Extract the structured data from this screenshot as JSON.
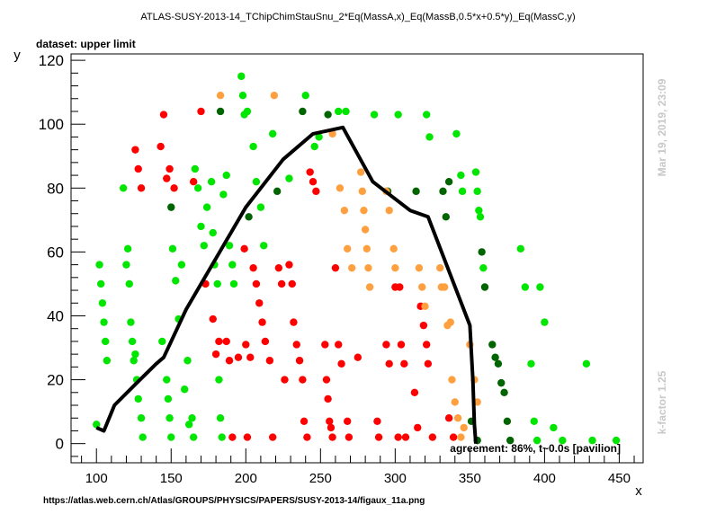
{
  "chart_data": {
    "type": "scatter",
    "title": "ATLAS-SUSY-2013-14_TChipChimStauSnu_2*Eq(MassA,x)_Eq(MassB,0.5*x+0.5*y)_Eq(MassC,y)",
    "subtitle": "dataset: upper limit",
    "xlabel": "x",
    "ylabel": "y",
    "xlim": [
      83,
      466
    ],
    "ylim": [
      -6,
      122
    ],
    "xticks": [
      100,
      150,
      200,
      250,
      300,
      350,
      400,
      450
    ],
    "yticks": [
      0,
      20,
      40,
      60,
      80,
      100,
      120
    ],
    "grid": false,
    "colors": {
      "green": "#00e600",
      "darkgreen": "#006400",
      "red": "#ff0000",
      "orange": "#ffa040",
      "line": "#000000"
    },
    "series": [
      {
        "color_key": "green",
        "points": [
          [
            100,
            6
          ],
          [
            102,
            56
          ],
          [
            103,
            50
          ],
          [
            104,
            44
          ],
          [
            105,
            38
          ],
          [
            106,
            32
          ],
          [
            107,
            26
          ],
          [
            118,
            80
          ],
          [
            120,
            56
          ],
          [
            121,
            61
          ],
          [
            122,
            50
          ],
          [
            123,
            38
          ],
          [
            124,
            32
          ],
          [
            125,
            26
          ],
          [
            126,
            28
          ],
          [
            127,
            20
          ],
          [
            128,
            14
          ],
          [
            130,
            8
          ],
          [
            131,
            2
          ],
          [
            144,
            32
          ],
          [
            147,
            20
          ],
          [
            148,
            14
          ],
          [
            149,
            8
          ],
          [
            150,
            2
          ],
          [
            151,
            61
          ],
          [
            153,
            51
          ],
          [
            155,
            39
          ],
          [
            157,
            56
          ],
          [
            159,
            17
          ],
          [
            161,
            26
          ],
          [
            162,
            6
          ],
          [
            164,
            8
          ],
          [
            165,
            2
          ],
          [
            166,
            86
          ],
          [
            168,
            80
          ],
          [
            170,
            68
          ],
          [
            172,
            62
          ],
          [
            173,
            50
          ],
          [
            174,
            74
          ],
          [
            177,
            82
          ],
          [
            178,
            66
          ],
          [
            179,
            56
          ],
          [
            181,
            50
          ],
          [
            182,
            20
          ],
          [
            183,
            8
          ],
          [
            184,
            2
          ],
          [
            185,
            78
          ],
          [
            187,
            84
          ],
          [
            189,
            62
          ],
          [
            191,
            56
          ],
          [
            192,
            50
          ],
          [
            197,
            115
          ],
          [
            198,
            109
          ],
          [
            199,
            103
          ],
          [
            201,
            104
          ],
          [
            205,
            93
          ],
          [
            207,
            82
          ],
          [
            210,
            74
          ],
          [
            212,
            62
          ],
          [
            218,
            97
          ],
          [
            229,
            83
          ],
          [
            240,
            109
          ],
          [
            246,
            93
          ],
          [
            249,
            96
          ],
          [
            262,
            104
          ],
          [
            267,
            104
          ],
          [
            286,
            103
          ],
          [
            302,
            103
          ],
          [
            321,
            103
          ],
          [
            323,
            96
          ],
          [
            341,
            97
          ],
          [
            344,
            84
          ],
          [
            345,
            79
          ],
          [
            354,
            85
          ],
          [
            355,
            79
          ],
          [
            356,
            73
          ],
          [
            357,
            71
          ],
          [
            359,
            55
          ],
          [
            384,
            61
          ],
          [
            387,
            49
          ],
          [
            397,
            49
          ],
          [
            400,
            38
          ],
          [
            391,
            25
          ],
          [
            393,
            7
          ],
          [
            395,
            1
          ],
          [
            406,
            5
          ],
          [
            412,
            1
          ],
          [
            428,
            25
          ],
          [
            432,
            1
          ],
          [
            448,
            1
          ]
        ]
      },
      {
        "color_key": "darkgreen",
        "points": [
          [
            150,
            74
          ],
          [
            183,
            104
          ],
          [
            202,
            71
          ],
          [
            221,
            79
          ],
          [
            238,
            104
          ],
          [
            255,
            103
          ],
          [
            295,
            79
          ],
          [
            314,
            79
          ],
          [
            332,
            79
          ],
          [
            334,
            71
          ],
          [
            336,
            82
          ],
          [
            351,
            7
          ],
          [
            355,
            1
          ],
          [
            358,
            60
          ],
          [
            360,
            49
          ],
          [
            365,
            31
          ],
          [
            367,
            27
          ],
          [
            369,
            25
          ],
          [
            371,
            19
          ],
          [
            373,
            16
          ],
          [
            375,
            7
          ],
          [
            377,
            1
          ]
        ]
      },
      {
        "color_key": "red",
        "points": [
          [
            126,
            92
          ],
          [
            128,
            86
          ],
          [
            130,
            80
          ],
          [
            143,
            93
          ],
          [
            145,
            103
          ],
          [
            147,
            83
          ],
          [
            149,
            86
          ],
          [
            152,
            80
          ],
          [
            165,
            82
          ],
          [
            170,
            104
          ],
          [
            173,
            50
          ],
          [
            178,
            39
          ],
          [
            180,
            28
          ],
          [
            182,
            32
          ],
          [
            187,
            32
          ],
          [
            189,
            26
          ],
          [
            191,
            2
          ],
          [
            195,
            27
          ],
          [
            199,
            61
          ],
          [
            200,
            31
          ],
          [
            201,
            2
          ],
          [
            203,
            27
          ],
          [
            205,
            55
          ],
          [
            207,
            50
          ],
          [
            209,
            44
          ],
          [
            211,
            38
          ],
          [
            213,
            32
          ],
          [
            216,
            26
          ],
          [
            218,
            2
          ],
          [
            222,
            55
          ],
          [
            224,
            50
          ],
          [
            226,
            20
          ],
          [
            229,
            56
          ],
          [
            231,
            50
          ],
          [
            232,
            38
          ],
          [
            234,
            31
          ],
          [
            236,
            26
          ],
          [
            238,
            20
          ],
          [
            239,
            7
          ],
          [
            241,
            2
          ],
          [
            243,
            85
          ],
          [
            245,
            82
          ],
          [
            247,
            79
          ],
          [
            253,
            31
          ],
          [
            254,
            20
          ],
          [
            255,
            14
          ],
          [
            256,
            7
          ],
          [
            257,
            5
          ],
          [
            258,
            2
          ],
          [
            260,
            55
          ],
          [
            262,
            31
          ],
          [
            264,
            25
          ],
          [
            268,
            7
          ],
          [
            269,
            2
          ],
          [
            275,
            27
          ],
          [
            288,
            7
          ],
          [
            289,
            2
          ],
          [
            294,
            31
          ],
          [
            296,
            25
          ],
          [
            300,
            49
          ],
          [
            302,
            2
          ],
          [
            303,
            49
          ],
          [
            304,
            31
          ],
          [
            306,
            25
          ],
          [
            307,
            2
          ],
          [
            313,
            16
          ],
          [
            315,
            5
          ],
          [
            317,
            43
          ],
          [
            319,
            37
          ],
          [
            321,
            31
          ],
          [
            322,
            25
          ],
          [
            325,
            2
          ],
          [
            336,
            8
          ],
          [
            339,
            2
          ]
        ]
      },
      {
        "color_key": "orange",
        "points": [
          [
            183,
            109
          ],
          [
            219,
            109
          ],
          [
            258,
            97
          ],
          [
            263,
            80
          ],
          [
            266,
            73
          ],
          [
            268,
            61
          ],
          [
            271,
            55
          ],
          [
            277,
            85
          ],
          [
            278,
            79
          ],
          [
            279,
            73
          ],
          [
            280,
            67
          ],
          [
            281,
            61
          ],
          [
            282,
            55
          ],
          [
            283,
            49
          ],
          [
            294,
            79
          ],
          [
            296,
            73
          ],
          [
            299,
            61
          ],
          [
            300,
            55
          ],
          [
            316,
            55
          ],
          [
            318,
            49
          ],
          [
            320,
            43
          ],
          [
            330,
            55
          ],
          [
            331,
            49
          ],
          [
            333,
            49
          ],
          [
            335,
            37
          ],
          [
            337,
            38
          ],
          [
            338,
            20
          ],
          [
            340,
            13
          ],
          [
            342,
            8
          ],
          [
            344,
            2
          ],
          [
            346,
            5
          ],
          [
            350,
            31
          ],
          [
            353,
            20
          ],
          [
            355,
            13
          ]
        ]
      }
    ],
    "exclusion_line": [
      [
        100,
        5
      ],
      [
        105,
        4
      ],
      [
        112,
        12
      ],
      [
        127,
        19
      ],
      [
        140,
        25
      ],
      [
        145,
        27
      ],
      [
        160,
        42
      ],
      [
        180,
        58
      ],
      [
        200,
        74
      ],
      [
        225,
        89
      ],
      [
        245,
        97
      ],
      [
        265,
        99
      ],
      [
        285,
        82
      ],
      [
        310,
        73
      ],
      [
        322,
        71
      ],
      [
        350,
        37
      ],
      [
        352,
        20
      ],
      [
        353,
        6
      ],
      [
        354,
        0
      ]
    ],
    "annotations": {
      "agreement": "agreement: 86%, t~0.0s [pavilion]",
      "timestamp": "Mar 19, 2019, 23:09",
      "kfactor": "k-factor 1.25",
      "source": "https://atlas.web.cern.ch/Atlas/GROUPS/PHYSICS/PAPERS/SUSY-2013-14/figaux_11a.png"
    }
  }
}
